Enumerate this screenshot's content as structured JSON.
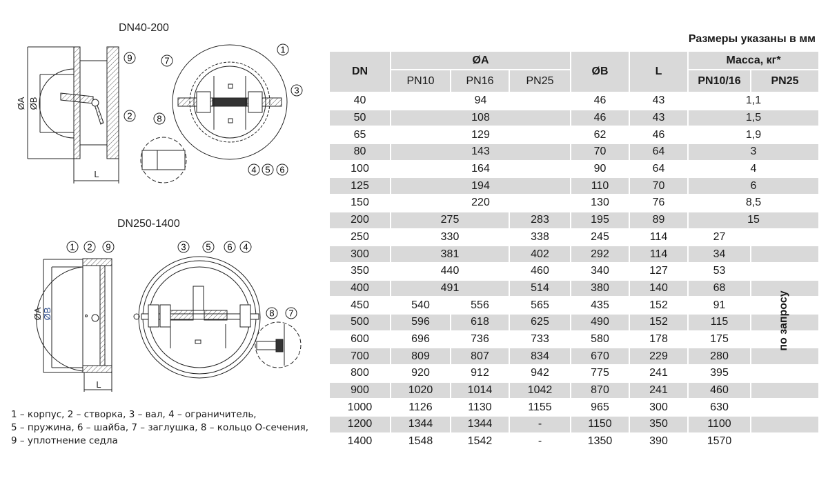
{
  "drawings": {
    "small": {
      "title": "DN40-200",
      "dim_a": "ØA",
      "dim_b": "ØB",
      "dim_l": "L"
    },
    "large": {
      "title": "DN250-1400",
      "dim_a": "ØA",
      "dim_b": "ØB",
      "dim_l": "L"
    },
    "callouts": [
      "1",
      "2",
      "3",
      "4",
      "5",
      "6",
      "7",
      "8",
      "9"
    ]
  },
  "legend": [
    "1 – корпус, 2 – створка, 3 – вал, 4 – ограничитель,",
    "5 – пружина, 6 – шайба, 7 – заглушка, 8 – кольцо О-сечения,",
    "9 – уплотнение седла"
  ],
  "table": {
    "units_note": "Размеры указаны в мм",
    "headers": {
      "dn": "DN",
      "a": "ØA",
      "b": "ØB",
      "l": "L",
      "mass": "Масса, кг*",
      "pn10": "PN10",
      "pn16": "PN16",
      "pn25": "PN25",
      "pn10_16": "PN10/16",
      "mass_pn25": "PN25"
    },
    "on_request": "по запросу",
    "rows": [
      {
        "dn": "40",
        "a": "94",
        "b": "46",
        "l": "43",
        "mass": "1,1"
      },
      {
        "dn": "50",
        "a": "108",
        "b": "46",
        "l": "43",
        "mass": "1,5"
      },
      {
        "dn": "65",
        "a": "129",
        "b": "62",
        "l": "46",
        "mass": "1,9"
      },
      {
        "dn": "80",
        "a": "143",
        "b": "70",
        "l": "64",
        "mass": "3"
      },
      {
        "dn": "100",
        "a": "164",
        "b": "90",
        "l": "64",
        "mass": "4"
      },
      {
        "dn": "125",
        "a": "194",
        "b": "110",
        "l": "70",
        "mass": "6"
      },
      {
        "dn": "150",
        "a": "220",
        "b": "130",
        "l": "76",
        "mass": "8,5"
      },
      {
        "dn": "200",
        "a_pn10_16": "275",
        "a_pn25": "283",
        "b": "195",
        "l": "89",
        "mass": "15"
      },
      {
        "dn": "250",
        "a_pn10_16": "330",
        "a_pn25": "338",
        "b": "245",
        "l": "114",
        "mass_pn10_16": "27"
      },
      {
        "dn": "300",
        "a_pn10_16": "381",
        "a_pn25": "402",
        "b": "292",
        "l": "114",
        "mass_pn10_16": "34"
      },
      {
        "dn": "350",
        "a_pn10_16": "440",
        "a_pn25": "460",
        "b": "340",
        "l": "127",
        "mass_pn10_16": "53"
      },
      {
        "dn": "400",
        "a_pn10_16": "491",
        "a_pn25": "514",
        "b": "380",
        "l": "140",
        "mass_pn10_16": "68"
      },
      {
        "dn": "450",
        "a_pn10": "540",
        "a_pn16": "556",
        "a_pn25": "565",
        "b": "435",
        "l": "152",
        "mass_pn10_16": "91"
      },
      {
        "dn": "500",
        "a_pn10": "596",
        "a_pn16": "618",
        "a_pn25": "625",
        "b": "490",
        "l": "152",
        "mass_pn10_16": "115"
      },
      {
        "dn": "600",
        "a_pn10": "696",
        "a_pn16": "736",
        "a_pn25": "733",
        "b": "580",
        "l": "178",
        "mass_pn10_16": "175"
      },
      {
        "dn": "700",
        "a_pn10": "809",
        "a_pn16": "807",
        "a_pn25": "834",
        "b": "670",
        "l": "229",
        "mass_pn10_16": "280"
      },
      {
        "dn": "800",
        "a_pn10": "920",
        "a_pn16": "912",
        "a_pn25": "942",
        "b": "775",
        "l": "241",
        "mass_pn10_16": "395"
      },
      {
        "dn": "900",
        "a_pn10": "1020",
        "a_pn16": "1014",
        "a_pn25": "1042",
        "b": "870",
        "l": "241",
        "mass_pn10_16": "460"
      },
      {
        "dn": "1000",
        "a_pn10": "1126",
        "a_pn16": "1130",
        "a_pn25": "1155",
        "b": "965",
        "l": "300",
        "mass_pn10_16": "630"
      },
      {
        "dn": "1200",
        "a_pn10": "1344",
        "a_pn16": "1344",
        "a_pn25": "-",
        "b": "1150",
        "l": "350",
        "mass_pn10_16": "1100"
      },
      {
        "dn": "1400",
        "a_pn10": "1548",
        "a_pn16": "1542",
        "a_pn25": "-",
        "b": "1350",
        "l": "390",
        "mass_pn10_16": "1570"
      }
    ]
  }
}
